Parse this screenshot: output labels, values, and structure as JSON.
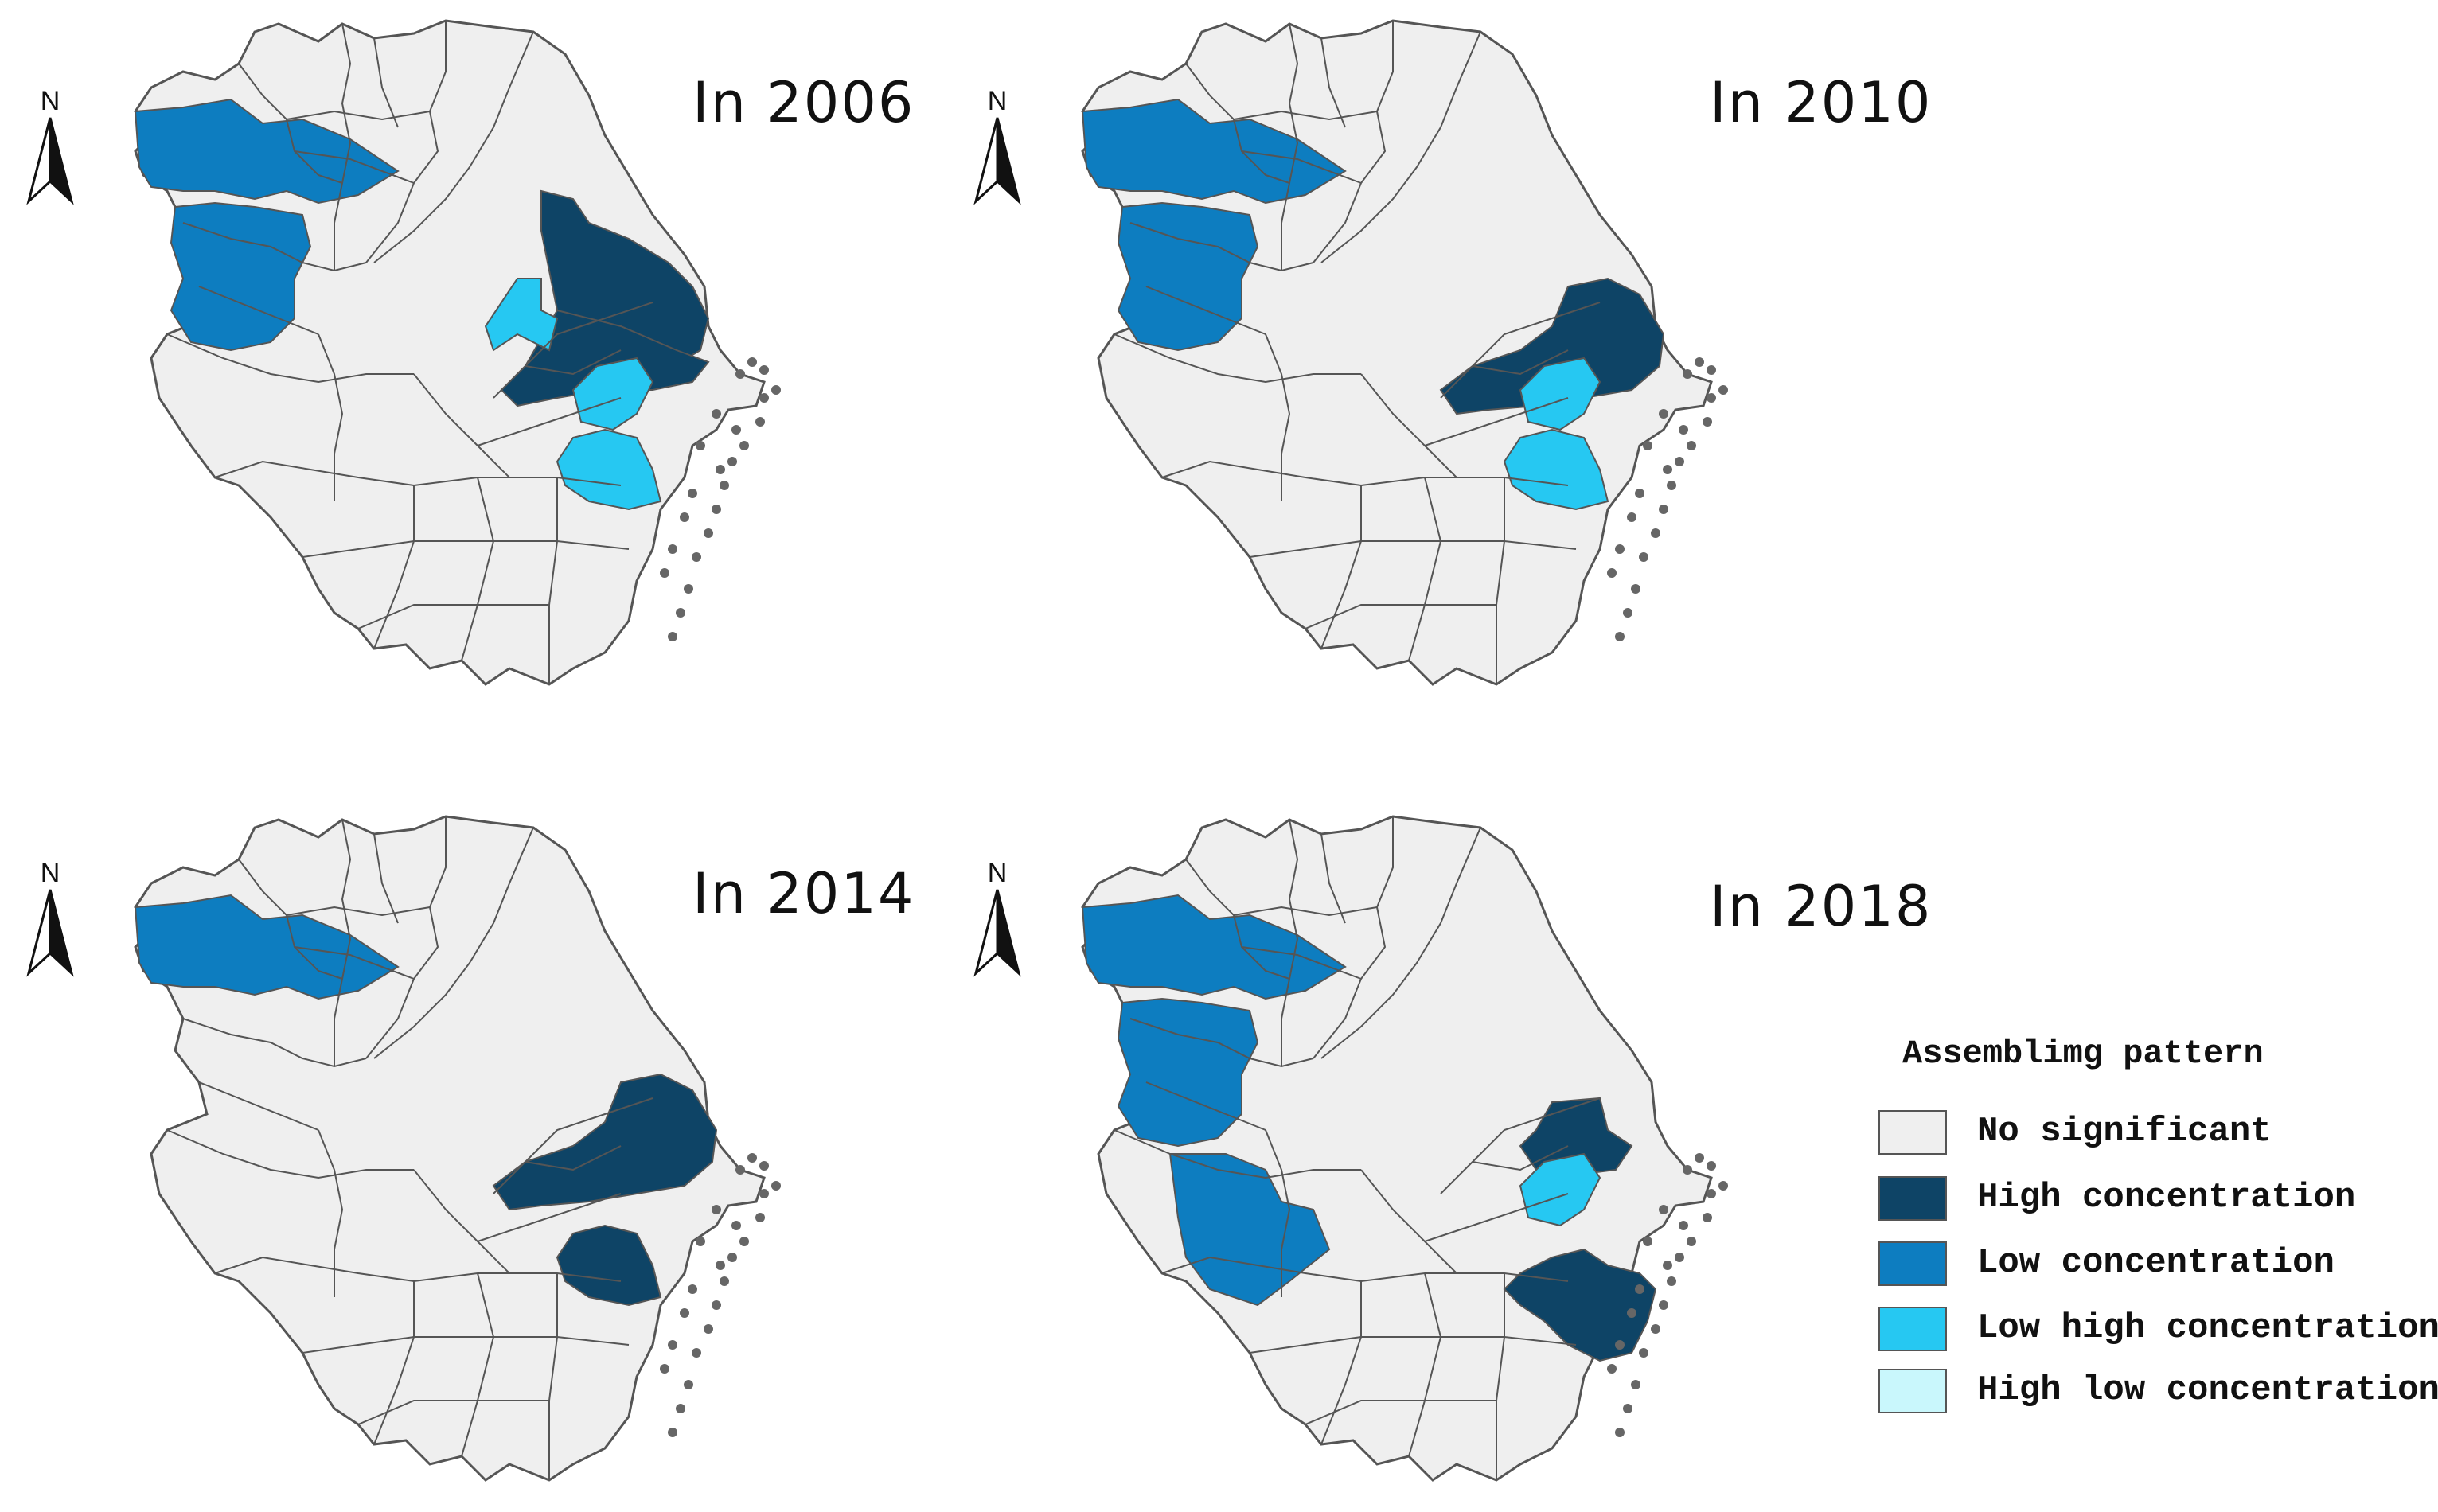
{
  "maps": [
    {
      "title": "In 2006",
      "highlights": [
        {
          "region": "northwest_upper",
          "class": "low"
        },
        {
          "region": "northwest_lower",
          "class": "low"
        },
        {
          "region": "east_north",
          "class": "high"
        },
        {
          "region": "east_south",
          "class": "high"
        },
        {
          "region": "center_small",
          "class": "lowhigh"
        },
        {
          "region": "center_right",
          "class": "lowhigh"
        },
        {
          "region": "south_middle",
          "class": "lowhigh"
        }
      ]
    },
    {
      "title": "In 2010",
      "highlights": [
        {
          "region": "northwest_upper",
          "class": "low"
        },
        {
          "region": "northwest_lower",
          "class": "low"
        },
        {
          "region": "east_mid",
          "class": "high"
        },
        {
          "region": "center_right",
          "class": "lowhigh"
        },
        {
          "region": "south_middle",
          "class": "lowhigh"
        }
      ]
    },
    {
      "title": "In 2014",
      "highlights": [
        {
          "region": "northwest_upper",
          "class": "low"
        },
        {
          "region": "east_mid",
          "class": "high"
        },
        {
          "region": "south_middle",
          "class": "high"
        }
      ]
    },
    {
      "title": "In 2018",
      "highlights": [
        {
          "region": "northwest_upper",
          "class": "low"
        },
        {
          "region": "northwest_lower",
          "class": "low"
        },
        {
          "region": "west_south",
          "class": "low"
        },
        {
          "region": "east_mid_small",
          "class": "high"
        },
        {
          "region": "center_right",
          "class": "lowhigh"
        },
        {
          "region": "southeast",
          "class": "high"
        }
      ]
    }
  ],
  "north_label": "N",
  "legend": {
    "title": "Assemblimg pattern",
    "items": [
      {
        "key": "none",
        "label": "No significant",
        "color": "#efefef"
      },
      {
        "key": "high",
        "label": "High concentration",
        "color": "#0e4466"
      },
      {
        "key": "low",
        "label": "Low concentration",
        "color": "#0d7dc0"
      },
      {
        "key": "lowhigh",
        "label": "Low high concentration",
        "color": "#26c8f2"
      },
      {
        "key": "highlow",
        "label": "High low concentration",
        "color": "#c9f7fc"
      }
    ]
  },
  "colors": {
    "base_fill": "#efefef",
    "border": "#555555",
    "island": "#666666"
  }
}
